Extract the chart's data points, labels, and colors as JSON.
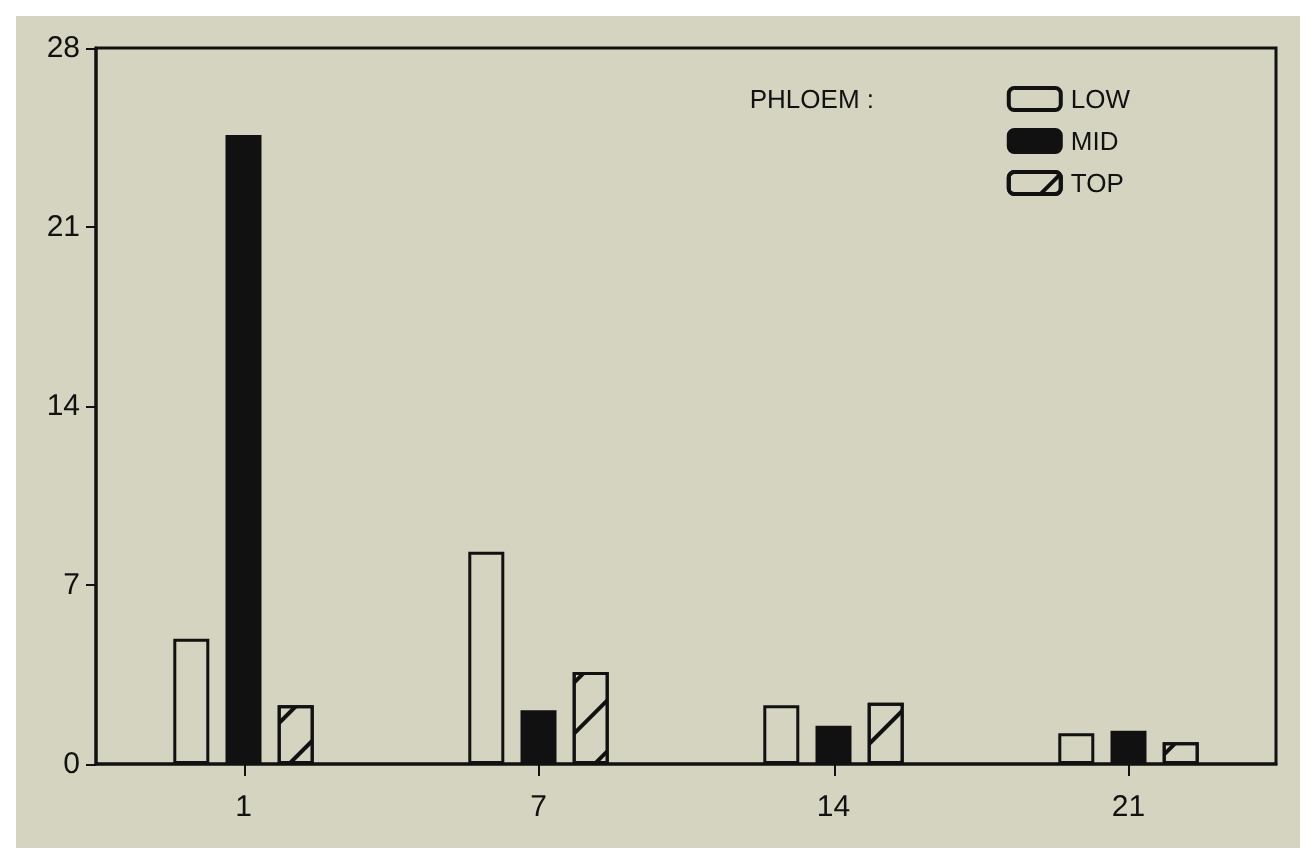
{
  "chart_data": {
    "type": "bar",
    "categories": [
      "1",
      "7",
      "14",
      "21"
    ],
    "legend_title": "PHLOEM :",
    "legend": "top right",
    "series": [
      {
        "name": "LOW",
        "color": "#d4d4c0",
        "values": [
          4.9,
          8.3,
          2.3,
          1.2
        ]
      },
      {
        "name": "MID",
        "color": "#111111",
        "values": [
          24.6,
          2.1,
          1.5,
          1.3
        ]
      },
      {
        "name": "TOP",
        "color": "#d4d4c0",
        "values": [
          2.3,
          3.6,
          2.4,
          0.85
        ]
      }
    ],
    "ylim": [
      0,
      28
    ],
    "yticks": [
      0,
      7,
      14,
      21,
      28
    ],
    "grid": false
  }
}
